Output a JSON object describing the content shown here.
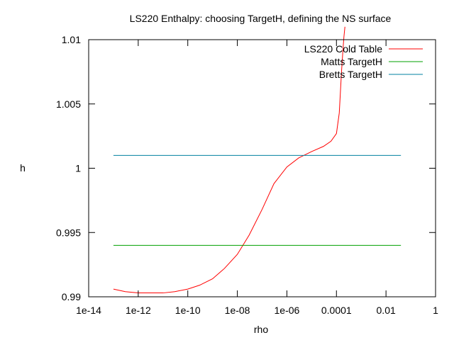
{
  "chart_data": {
    "type": "line",
    "title": "LS220 Enthalpy: choosing TargetH, defining the NS surface",
    "xlabel": "rho",
    "ylabel": "h",
    "xscale": "log",
    "xlim": [
      1e-14,
      1
    ],
    "ylim": [
      0.99,
      1.01
    ],
    "x_ticks": [
      {
        "value": 1e-14,
        "label": "1e-14"
      },
      {
        "value": 1e-12,
        "label": "1e-12"
      },
      {
        "value": 1e-10,
        "label": "1e-10"
      },
      {
        "value": 1e-08,
        "label": "1e-08"
      },
      {
        "value": 1e-06,
        "label": "1e-06"
      },
      {
        "value": 0.0001,
        "label": "0.0001"
      },
      {
        "value": 0.01,
        "label": "0.01"
      },
      {
        "value": 1,
        "label": "1"
      }
    ],
    "y_ticks": [
      {
        "value": 0.99,
        "label": "0.99"
      },
      {
        "value": 0.995,
        "label": "0.995"
      },
      {
        "value": 1.0,
        "label": "1"
      },
      {
        "value": 1.005,
        "label": "1.005"
      },
      {
        "value": 1.01,
        "label": "1.01"
      }
    ],
    "grid": false,
    "legend_position": "top-right",
    "series": [
      {
        "name": "LS220 Cold Table",
        "color": "#ff0000",
        "x": [
          1e-13,
          3e-13,
          1e-12,
          3e-12,
          1e-11,
          3e-11,
          1e-10,
          3e-10,
          1e-09,
          3e-09,
          1e-08,
          3e-08,
          1e-07,
          3e-07,
          1e-06,
          3e-06,
          1e-05,
          3e-05,
          6e-05,
          0.0001,
          0.00013,
          0.00016,
          0.00018,
          0.0002,
          0.00022
        ],
        "y": [
          0.9906,
          0.9904,
          0.9903,
          0.9903,
          0.9903,
          0.9904,
          0.9906,
          0.9909,
          0.9914,
          0.9922,
          0.9933,
          0.9948,
          0.9968,
          0.9988,
          1.0001,
          1.0008,
          1.0013,
          1.0017,
          1.0021,
          1.0027,
          1.0043,
          1.0075,
          1.009,
          1.0102,
          1.011
        ]
      },
      {
        "name": "Matts TargetH",
        "color": "#00a000",
        "x": [
          1e-13,
          0.04
        ],
        "y": [
          0.994,
          0.994
        ]
      },
      {
        "name": "Bretts TargetH",
        "color": "#0080a0",
        "x": [
          1e-13,
          0.04
        ],
        "y": [
          1.001,
          1.001
        ]
      }
    ]
  }
}
